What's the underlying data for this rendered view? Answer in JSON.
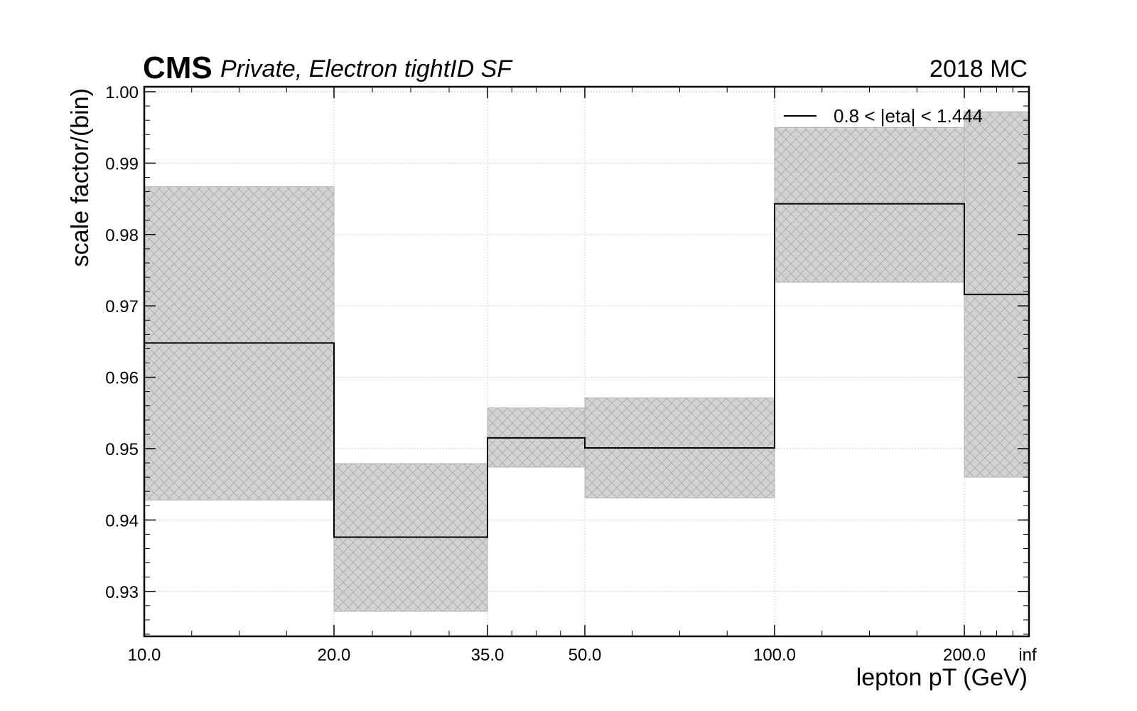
{
  "header": {
    "experiment": "CMS",
    "extra_text": "Private, Electron tightID SF",
    "lumi_text": "2018 MC"
  },
  "chart_data": {
    "type": "histogram-step",
    "xlabel": "lepton pT (GeV)",
    "ylabel": "scale factor/(bin)",
    "x_bin_edges": [
      "10.0",
      "20.0",
      "35.0",
      "50.0",
      "100.0",
      "200.0",
      "inf"
    ],
    "ylim": [
      0.9237,
      1.0007
    ],
    "y_ticks": [
      "0.93",
      "0.94",
      "0.95",
      "0.96",
      "0.97",
      "0.98",
      "0.99",
      "1.00"
    ],
    "y_tick_values": [
      0.93,
      0.94,
      0.95,
      0.96,
      0.97,
      0.98,
      0.99,
      1.0
    ],
    "grid": true,
    "legend_position": "top-right",
    "series": [
      {
        "name": "0.8 < |eta| < 1.444",
        "color": "#000000",
        "values": [
          0.9648,
          0.9376,
          0.9515,
          0.9501,
          0.9843,
          0.9716
        ],
        "unc_low": [
          0.9428,
          0.9272,
          0.9474,
          0.9431,
          0.9733,
          0.946
        ],
        "unc_high": [
          0.9867,
          0.9479,
          0.9557,
          0.9571,
          0.995,
          0.9972
        ]
      }
    ],
    "uncertainty_fill_color": "#d3d3d3",
    "uncertainty_hatch_color": "#a9a9a9"
  }
}
